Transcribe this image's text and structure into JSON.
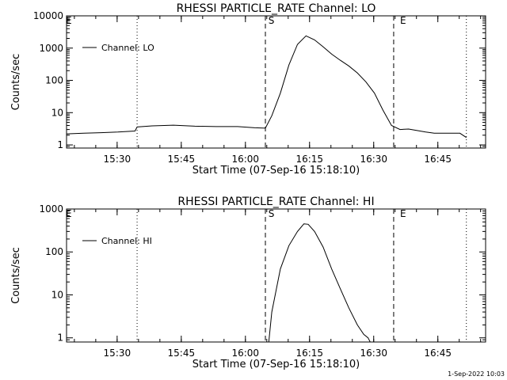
{
  "chart_data": [
    {
      "type": "line",
      "title": "RHESSI PARTICLE_RATE Channel: LO",
      "xlabel": "Start Time (07-Sep-16 15:18:10)",
      "ylabel": "Counts/sec",
      "yscale": "log",
      "ylim": [
        0.8,
        10000
      ],
      "xlim_minutes_from_1518": [
        0,
        98
      ],
      "x_ticks": [
        "15:30",
        "15:45",
        "16:00",
        "16:15",
        "16:30",
        "16:45"
      ],
      "y_ticks": [
        "1",
        "10",
        "100",
        "1000",
        "10000"
      ],
      "legend": "Channel: LO",
      "markers": {
        "start_label": "S",
        "end_label": "E",
        "edge_label": "E"
      },
      "vlines_dotted_minutes": [
        16.5,
        93.5
      ],
      "vlines_dashed_minutes": [
        46.5,
        76.5
      ],
      "marker_start_minute": 47.0,
      "marker_end_minute": 76.5,
      "series": [
        {
          "name": "Channel: LO",
          "x": [
            0,
            4,
            8,
            12,
            16,
            16.5,
            20,
            25,
            30,
            35,
            40,
            44,
            46.5,
            48,
            50,
            52,
            54,
            56,
            58,
            60,
            62,
            64,
            66,
            68,
            70,
            72,
            74,
            76,
            78,
            80,
            84,
            86,
            88,
            92,
            93.5
          ],
          "y": [
            2.2,
            2.3,
            2.4,
            2.5,
            2.7,
            3.6,
            3.9,
            4.1,
            3.8,
            3.7,
            3.7,
            3.4,
            3.3,
            8,
            40,
            300,
            1300,
            2400,
            1800,
            1100,
            650,
            420,
            280,
            170,
            90,
            40,
            12,
            4,
            3,
            3.1,
            2.5,
            2.3,
            2.3,
            2.3,
            1.7
          ]
        }
      ]
    },
    {
      "type": "line",
      "title": "RHESSI PARTICLE_RATE Channel: HI",
      "xlabel": "Start Time (07-Sep-16 15:18:10)",
      "ylabel": "Counts/sec",
      "yscale": "log",
      "ylim": [
        0.8,
        1000
      ],
      "xlim_minutes_from_1518": [
        0,
        98
      ],
      "x_ticks": [
        "15:30",
        "15:45",
        "16:00",
        "16:15",
        "16:30",
        "16:45"
      ],
      "y_ticks": [
        "1",
        "10",
        "100",
        "1000"
      ],
      "legend": "Channel: HI",
      "markers": {
        "start_label": "S",
        "end_label": "E",
        "edge_label": "E"
      },
      "vlines_dotted_minutes": [
        16.5,
        93.5
      ],
      "vlines_dashed_minutes": [
        46.5,
        76.5
      ],
      "marker_start_minute": 47.0,
      "marker_end_minute": 76.5,
      "series": [
        {
          "name": "Channel: HI",
          "x": [
            47.3,
            48,
            50,
            52,
            54,
            55.5,
            56.5,
            58,
            60,
            62,
            64,
            66,
            68,
            69.5,
            70.5,
            71
          ],
          "y": [
            0.8,
            4,
            40,
            140,
            300,
            450,
            440,
            300,
            130,
            40,
            14,
            5,
            2,
            1.2,
            1,
            0.8
          ]
        }
      ]
    }
  ],
  "timestamp": "1-Sep-2022 10:03"
}
